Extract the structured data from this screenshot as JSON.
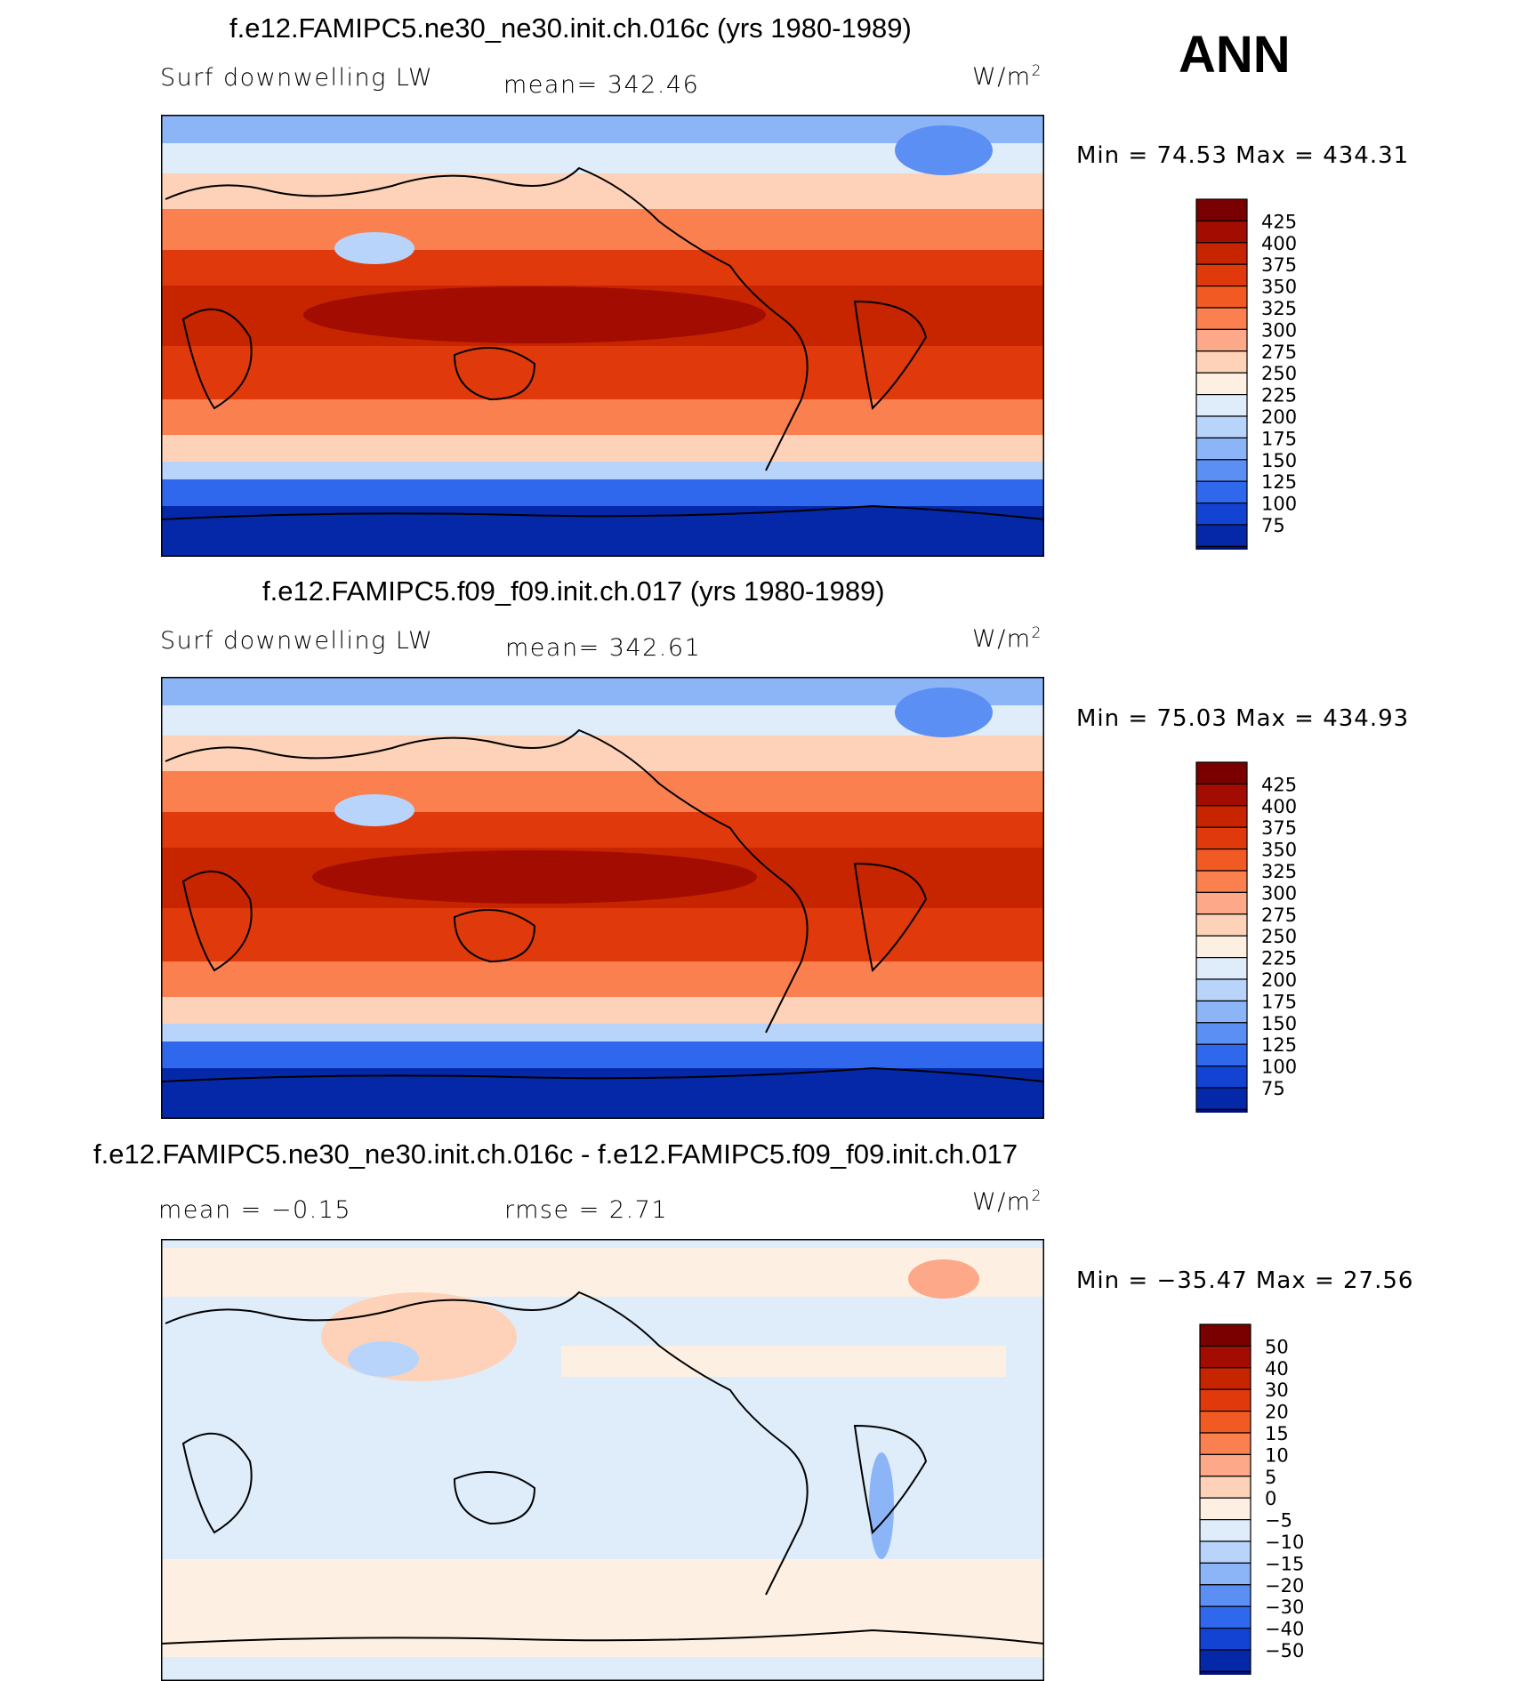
{
  "season": "ANN",
  "panels": [
    {
      "title": "f.e12.FAMIPC5.ne30_ne30.init.ch.016c (yrs 1980-1989)",
      "left_label": "Surf downwelling LW",
      "center_label": "mean= 342.46",
      "units_base": "W/m",
      "units_exp": "2",
      "minmax": "Min =   74.53 Max = 434.31"
    },
    {
      "title": "f.e12.FAMIPC5.f09_f09.init.ch.017 (yrs 1980-1989)",
      "left_label": "Surf downwelling LW",
      "center_label": "mean= 342.61",
      "units_base": "W/m",
      "units_exp": "2",
      "minmax": "Min =   75.03 Max = 434.93"
    },
    {
      "title": "f.e12.FAMIPC5.ne30_ne30.init.ch.016c - f.e12.FAMIPC5.f09_f09.init.ch.017",
      "left_label": "mean =  −0.15",
      "center_label": "rmse =    2.71",
      "units_base": "W/m",
      "units_exp": "2",
      "minmax": "Min = −35.47 Max =   27.56"
    }
  ],
  "colorbars": {
    "absolute": {
      "labels": [
        "425",
        "400",
        "375",
        "350",
        "325",
        "300",
        "275",
        "250",
        "225",
        "200",
        "175",
        "150",
        "125",
        "100",
        "75"
      ],
      "colors": [
        "#7a0000",
        "#a30c00",
        "#c72400",
        "#e03a0c",
        "#f25a24",
        "#fa8050",
        "#fca889",
        "#fdd2b8",
        "#fdf0e2",
        "#dfecfa",
        "#b8d4fb",
        "#8cb5f8",
        "#5b8ff3",
        "#2f68ec",
        "#1343d3",
        "#0528a8",
        "#001078"
      ]
    },
    "difference": {
      "labels": [
        "50",
        "40",
        "30",
        "20",
        "15",
        "10",
        "5",
        "0",
        "−5",
        "−10",
        "−15",
        "−20",
        "−30",
        "−40",
        "−50"
      ],
      "colors": [
        "#7a0000",
        "#a30c00",
        "#c72400",
        "#e03a0c",
        "#f25a24",
        "#fa8050",
        "#fca889",
        "#fdd2b8",
        "#fdf0e2",
        "#dfecfa",
        "#b8d4fb",
        "#8cb5f8",
        "#5b8ff3",
        "#2f68ec",
        "#1343d3",
        "#0528a8",
        "#001078"
      ]
    }
  },
  "chart_data": [
    {
      "type": "heatmap",
      "title": "f.e12.FAMIPC5.ne30_ne30.init.ch.016c (yrs 1980-1989)",
      "variable": "Surf downwelling LW",
      "units": "W/m2",
      "mean": 342.46,
      "min": 74.53,
      "max": 434.31,
      "colorbar_levels": [
        75,
        100,
        125,
        150,
        175,
        200,
        225,
        250,
        275,
        300,
        325,
        350,
        375,
        400,
        425
      ],
      "projection": "cylindrical equidistant, centered on Pacific"
    },
    {
      "type": "heatmap",
      "title": "f.e12.FAMIPC5.f09_f09.init.ch.017 (yrs 1980-1989)",
      "variable": "Surf downwelling LW",
      "units": "W/m2",
      "mean": 342.61,
      "min": 75.03,
      "max": 434.93,
      "colorbar_levels": [
        75,
        100,
        125,
        150,
        175,
        200,
        225,
        250,
        275,
        300,
        325,
        350,
        375,
        400,
        425
      ],
      "projection": "cylindrical equidistant, centered on Pacific"
    },
    {
      "type": "heatmap",
      "title": "f.e12.FAMIPC5.ne30_ne30.init.ch.016c - f.e12.FAMIPC5.f09_f09.init.ch.017",
      "units": "W/m2",
      "mean": -0.15,
      "rmse": 2.71,
      "min": -35.47,
      "max": 27.56,
      "colorbar_levels": [
        -50,
        -40,
        -30,
        -20,
        -15,
        -10,
        -5,
        0,
        5,
        10,
        15,
        20,
        30,
        40,
        50
      ],
      "projection": "cylindrical equidistant, centered on Pacific"
    }
  ]
}
